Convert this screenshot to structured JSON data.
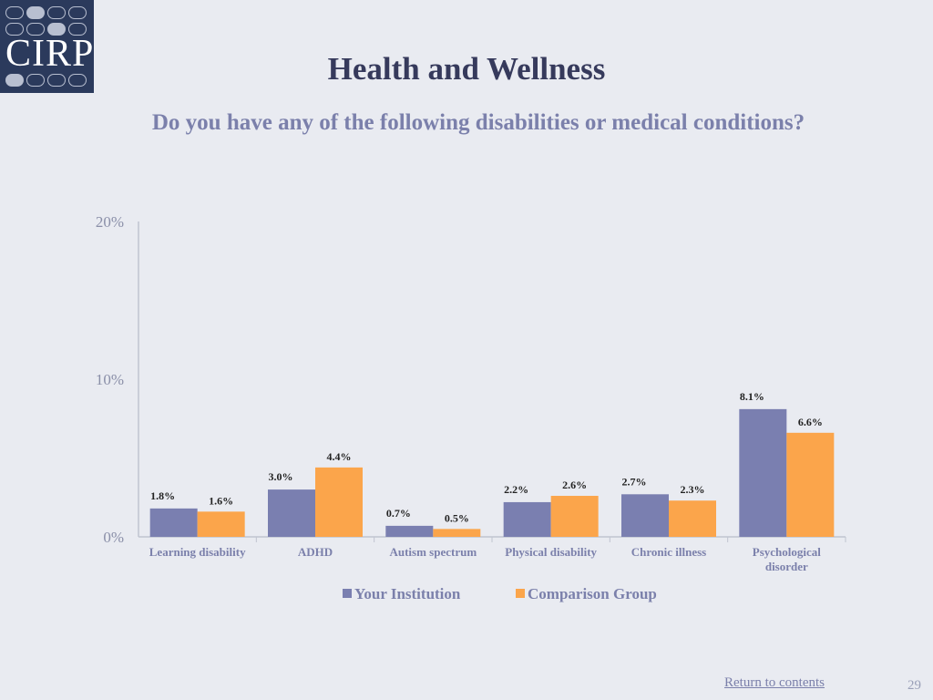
{
  "logo": {
    "text": "CIRP"
  },
  "header": {
    "title": "Health and Wellness",
    "subtitle": "Do you have any of the following disabilities or medical conditions?"
  },
  "colors": {
    "series_1": "#7a7fb0",
    "series_2": "#fba54b",
    "axis": "#c0c4d0",
    "tick_text": "#8a8fa8",
    "category_text": "#7b80ab",
    "label_text": "#222222"
  },
  "chart_data": {
    "type": "bar",
    "title": "",
    "xlabel": "",
    "ylabel": "",
    "ylim": [
      0,
      20
    ],
    "yticks": [
      0,
      10,
      20
    ],
    "ytick_labels": [
      "0%",
      "10%",
      "20%"
    ],
    "grid": false,
    "legend_position": "bottom",
    "categories": [
      "Learning disability",
      "ADHD",
      "Autism spectrum",
      "Physical disability",
      "Chronic illness",
      "Psychological disorder"
    ],
    "series": [
      {
        "name": "Your Institution",
        "values": [
          1.8,
          3.0,
          0.7,
          2.2,
          2.7,
          8.1
        ],
        "labels": [
          "1.8%",
          "3.0%",
          "0.7%",
          "2.2%",
          "2.7%",
          "8.1%"
        ]
      },
      {
        "name": "Comparison Group",
        "values": [
          1.6,
          4.4,
          0.5,
          2.6,
          2.3,
          6.6
        ],
        "labels": [
          "1.6%",
          "4.4%",
          "0.5%",
          "2.6%",
          "2.3%",
          "6.6%"
        ]
      }
    ]
  },
  "footer": {
    "link_text": "Return to contents",
    "page_number": "29"
  }
}
